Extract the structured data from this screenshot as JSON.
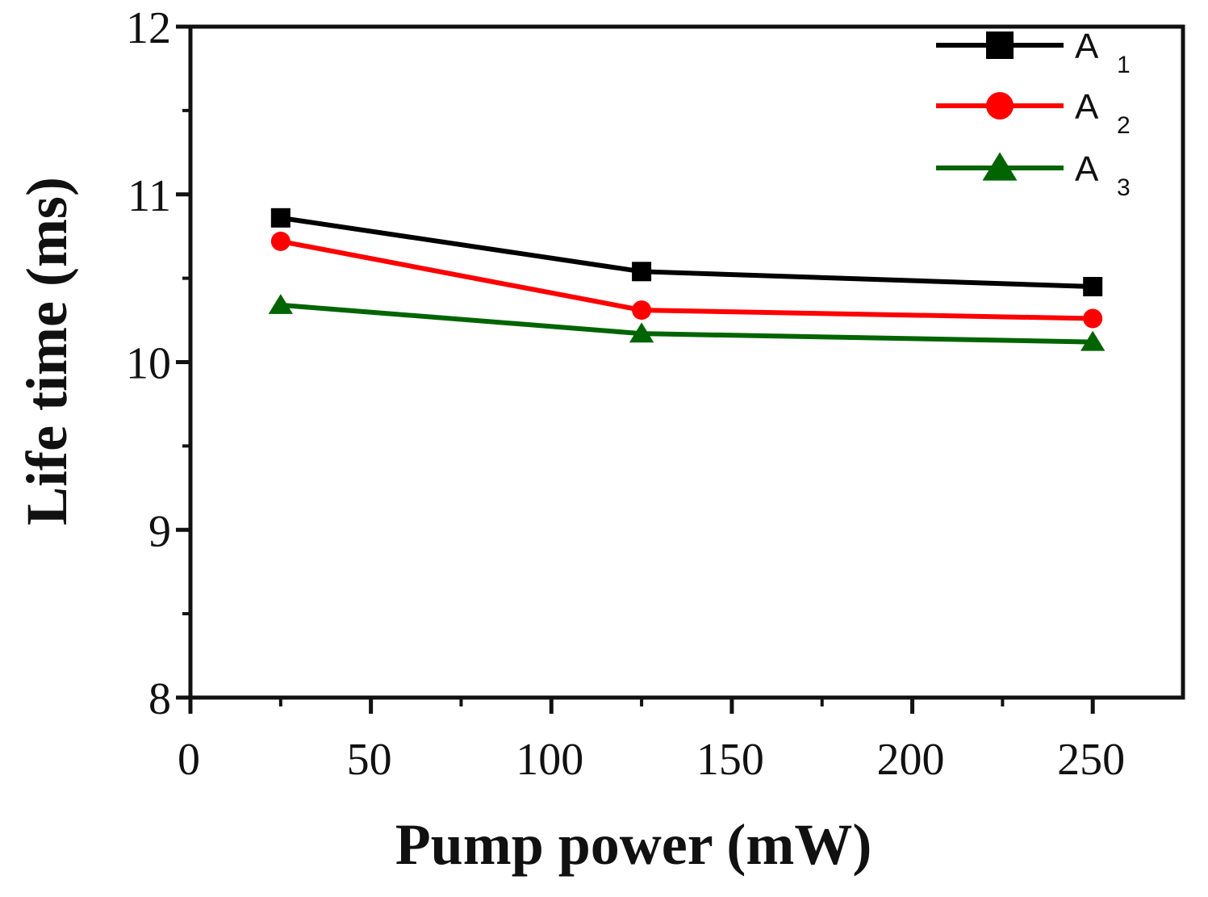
{
  "chart_data": {
    "type": "line",
    "title": "",
    "xlabel": "Pump power (mW)",
    "ylabel": "Life time (ms)",
    "xlim": [
      0,
      275
    ],
    "ylim": [
      8,
      12
    ],
    "xticks": [
      0,
      50,
      100,
      150,
      200,
      250
    ],
    "xtick_labels": [
      "0",
      "50",
      "100",
      "150",
      "200",
      "250"
    ],
    "yticks": [
      8,
      9,
      10,
      11,
      12
    ],
    "ytick_labels": [
      "8",
      "9",
      "10",
      "11",
      "12"
    ],
    "x_minor_ticks": [
      25,
      75,
      125,
      175,
      225
    ],
    "y_minor_ticks": [
      8.5,
      9.5,
      10.5,
      11.5
    ],
    "grid": false,
    "legend_position": "top-right",
    "x": [
      25,
      125,
      250
    ],
    "series": [
      {
        "name": "A",
        "subscript": "1",
        "color": "#000000",
        "marker": "square",
        "values": [
          10.86,
          10.54,
          10.45
        ]
      },
      {
        "name": "A",
        "subscript": "2",
        "color": "#ff0000",
        "marker": "circle",
        "values": [
          10.72,
          10.31,
          10.26
        ]
      },
      {
        "name": "A",
        "subscript": "3",
        "color": "#006400",
        "marker": "triangle",
        "values": [
          10.34,
          10.17,
          10.12
        ]
      }
    ]
  }
}
